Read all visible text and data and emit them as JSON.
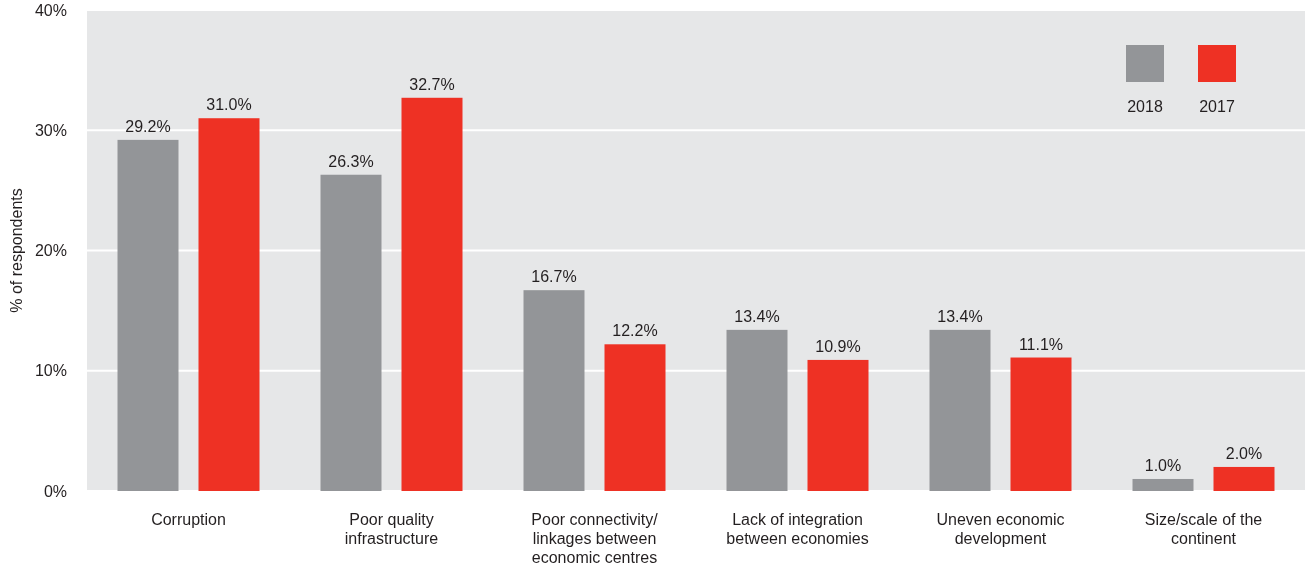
{
  "chart_data": {
    "type": "bar",
    "ylabel": "% of respondents",
    "categories": [
      "Corruption",
      "Poor quality infrastructure",
      "Poor connectivity/linkages between economic centres",
      "Lack of integration between economies",
      "Uneven economic development",
      "Size/scale of the continent"
    ],
    "series": [
      {
        "name": "2018",
        "color": "#939598",
        "values": [
          29.2,
          26.3,
          16.7,
          13.4,
          13.4,
          1.0
        ],
        "value_labels": [
          "29.2%",
          "26.3%",
          "16.7%",
          "13.4%",
          "13.4%",
          "1.0%"
        ]
      },
      {
        "name": "2017",
        "color": "#ee3124",
        "values": [
          31.0,
          32.7,
          12.2,
          10.9,
          11.1,
          2.0
        ],
        "value_labels": [
          "31.0%",
          "32.7%",
          "12.2%",
          "10.9%",
          "11.1%",
          "2.0%"
        ]
      }
    ],
    "ylim": [
      0,
      40
    ],
    "yticks": [
      {
        "value": 0,
        "label": "0%"
      },
      {
        "value": 10,
        "label": "10%"
      },
      {
        "value": 20,
        "label": "20%"
      },
      {
        "value": 30,
        "label": "30%"
      },
      {
        "value": 40,
        "label": "40%"
      }
    ],
    "grid": "y",
    "legend": "top right"
  }
}
